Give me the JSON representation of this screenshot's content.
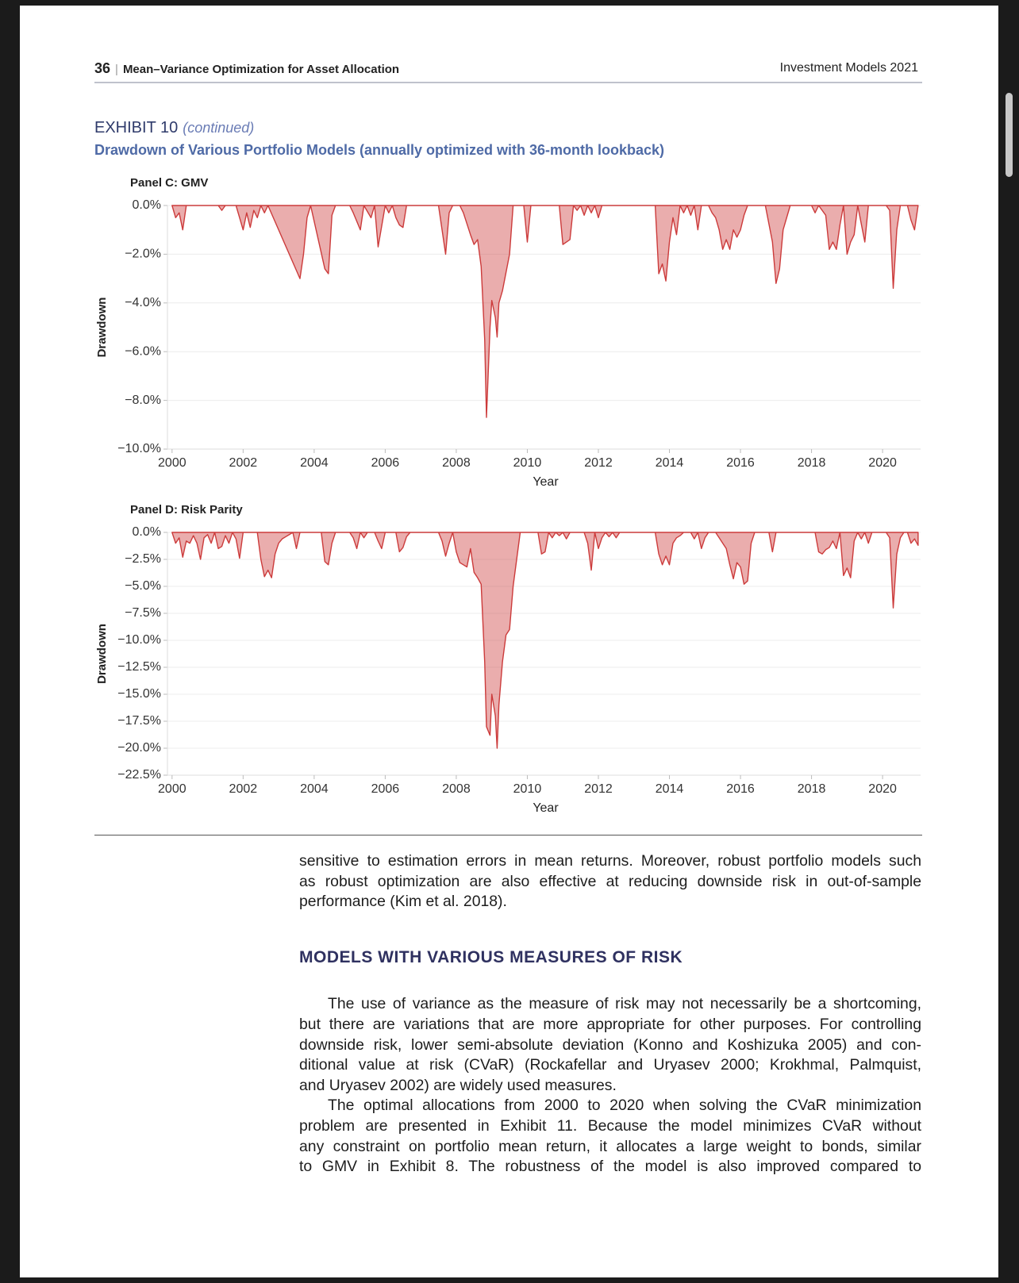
{
  "header": {
    "page_number": "36",
    "running_title": "Mean–Variance Optimization for Asset Allocation",
    "journal": "Investment Models 2021"
  },
  "exhibit": {
    "label": "EXHIBIT 10",
    "note": "(continued)",
    "title": "Drawdown of Various Portfolio Models (annually optimized with 36-month lookback)"
  },
  "chart_data": [
    {
      "type": "area",
      "title": "Panel C: GMV",
      "x_label": "Year",
      "y_label": "Drawdown",
      "color": "#cc3b3b",
      "grid": true,
      "xlim": [
        1999.87,
        2021.07
      ],
      "xticks": [
        2000,
        2002,
        2004,
        2006,
        2008,
        2010,
        2012,
        2014,
        2016,
        2018,
        2020
      ],
      "ylim": [
        -10,
        0
      ],
      "yticks": [
        {
          "value": 0,
          "label": "0.0%"
        },
        {
          "value": -2,
          "label": "−2.0%"
        },
        {
          "value": -4,
          "label": "−4.0%"
        },
        {
          "value": -6,
          "label": "−6.0%"
        },
        {
          "value": -8,
          "label": "−8.0%"
        },
        {
          "value": -10,
          "label": "−10.0%"
        }
      ],
      "x": [
        2000.0,
        2000.1,
        2000.2,
        2000.3,
        2000.4,
        2001.3,
        2001.4,
        2001.5,
        2001.8,
        2001.9,
        2002.0,
        2002.1,
        2002.2,
        2002.3,
        2002.4,
        2002.5,
        2002.6,
        2002.7,
        2003.6,
        2003.7,
        2003.8,
        2003.9,
        2004.3,
        2004.4,
        2004.5,
        2004.6,
        2005.0,
        2005.1,
        2005.3,
        2005.4,
        2005.6,
        2005.7,
        2005.8,
        2006.0,
        2006.1,
        2006.2,
        2006.3,
        2006.4,
        2006.5,
        2006.6,
        2007.5,
        2007.6,
        2007.7,
        2007.8,
        2007.9,
        2008.1,
        2008.2,
        2008.4,
        2008.5,
        2008.6,
        2008.7,
        2008.8,
        2008.85,
        2008.95,
        2009.0,
        2009.1,
        2009.15,
        2009.2,
        2009.3,
        2009.5,
        2009.6,
        2009.9,
        2010.0,
        2010.1,
        2010.9,
        2011.0,
        2011.1,
        2011.2,
        2011.3,
        2011.4,
        2011.5,
        2011.6,
        2011.7,
        2011.8,
        2011.9,
        2012.0,
        2012.1,
        2013.6,
        2013.7,
        2013.8,
        2013.9,
        2014.0,
        2014.1,
        2014.2,
        2014.3,
        2014.4,
        2014.5,
        2014.6,
        2014.7,
        2014.8,
        2014.9,
        2015.1,
        2015.2,
        2015.3,
        2015.4,
        2015.5,
        2015.6,
        2015.7,
        2015.8,
        2015.9,
        2016.0,
        2016.1,
        2016.2,
        2016.7,
        2016.9,
        2017.0,
        2017.1,
        2017.2,
        2017.4,
        2018.0,
        2018.1,
        2018.2,
        2018.4,
        2018.5,
        2018.6,
        2018.7,
        2018.8,
        2018.9,
        2019.0,
        2019.1,
        2019.2,
        2019.3,
        2019.5,
        2019.6,
        2020.1,
        2020.2,
        2020.3,
        2020.4,
        2020.5,
        2020.7,
        2020.8,
        2020.9,
        2021.0
      ],
      "values": [
        0,
        -0.5,
        -0.3,
        -1.0,
        0,
        0,
        -0.2,
        0,
        0,
        -0.5,
        -1.0,
        -0.3,
        -0.9,
        -0.2,
        -0.5,
        0,
        -0.3,
        0,
        -3.0,
        -2.0,
        -0.5,
        0,
        -2.6,
        -2.8,
        -0.4,
        0,
        0,
        -0.3,
        -1.0,
        0,
        -0.5,
        0,
        -1.7,
        0,
        -0.3,
        0,
        -0.5,
        -0.8,
        -0.9,
        0,
        0,
        -1.0,
        -2.0,
        -0.3,
        0,
        0,
        -0.3,
        -1.2,
        -1.6,
        -1.4,
        -2.5,
        -5.5,
        -8.7,
        -5.0,
        -3.9,
        -4.6,
        -5.4,
        -4.0,
        -3.5,
        -2.0,
        0,
        0,
        -1.5,
        0,
        0,
        -1.6,
        -1.5,
        -1.4,
        0,
        -0.2,
        0,
        -0.4,
        0,
        -0.3,
        0,
        -0.5,
        0,
        0,
        -2.8,
        -2.4,
        -3.1,
        -1.5,
        -0.5,
        -1.2,
        0,
        -0.3,
        0,
        -0.4,
        0,
        -1.0,
        0,
        0,
        -0.3,
        -0.5,
        -1.0,
        -1.8,
        -1.4,
        -1.8,
        -1.0,
        -1.3,
        -1.0,
        -0.4,
        0,
        0,
        -1.5,
        -3.2,
        -2.6,
        -1.0,
        0,
        0,
        -0.3,
        0,
        -0.4,
        -1.8,
        -1.5,
        -1.8,
        -0.8,
        0,
        -2.0,
        -1.5,
        -1.2,
        0,
        -1.5,
        0,
        0,
        -0.2,
        -3.4,
        -1.0,
        0,
        0,
        -0.6,
        -1.0,
        0
      ]
    },
    {
      "type": "area",
      "title": "Panel D: Risk Parity",
      "x_label": "Year",
      "y_label": "Drawdown",
      "color": "#cc3b3b",
      "grid": true,
      "xlim": [
        1999.87,
        2021.07
      ],
      "xticks": [
        2000,
        2002,
        2004,
        2006,
        2008,
        2010,
        2012,
        2014,
        2016,
        2018,
        2020
      ],
      "ylim": [
        -22.5,
        0
      ],
      "yticks": [
        {
          "value": 0,
          "label": "0.0%"
        },
        {
          "value": -2.5,
          "label": "−2.5%"
        },
        {
          "value": -5,
          "label": "−5.0%"
        },
        {
          "value": -7.5,
          "label": "−7.5%"
        },
        {
          "value": -10,
          "label": "−10.0%"
        },
        {
          "value": -12.5,
          "label": "−12.5%"
        },
        {
          "value": -15,
          "label": "−15.0%"
        },
        {
          "value": -17.5,
          "label": "−17.5%"
        },
        {
          "value": -20,
          "label": "−20.0%"
        },
        {
          "value": -22.5,
          "label": "−22.5%"
        }
      ],
      "x": [
        2000.0,
        2000.1,
        2000.2,
        2000.3,
        2000.4,
        2000.5,
        2000.6,
        2000.7,
        2000.8,
        2000.9,
        2001.0,
        2001.1,
        2001.2,
        2001.3,
        2001.4,
        2001.5,
        2001.6,
        2001.7,
        2001.8,
        2001.9,
        2002.0,
        2002.4,
        2002.5,
        2002.6,
        2002.7,
        2002.8,
        2002.9,
        2003.0,
        2003.1,
        2003.2,
        2003.3,
        2003.4,
        2003.5,
        2003.6,
        2004.2,
        2004.3,
        2004.4,
        2004.5,
        2004.6,
        2005.0,
        2005.1,
        2005.2,
        2005.3,
        2005.4,
        2005.5,
        2005.7,
        2005.8,
        2005.9,
        2006.0,
        2006.3,
        2006.4,
        2006.5,
        2006.6,
        2006.7,
        2007.5,
        2007.6,
        2007.7,
        2007.8,
        2007.9,
        2008.0,
        2008.1,
        2008.2,
        2008.3,
        2008.4,
        2008.5,
        2008.6,
        2008.7,
        2008.8,
        2008.85,
        2008.95,
        2009.0,
        2009.1,
        2009.15,
        2009.2,
        2009.3,
        2009.4,
        2009.5,
        2009.6,
        2009.8,
        2010.3,
        2010.4,
        2010.5,
        2010.6,
        2010.7,
        2010.8,
        2010.9,
        2011.0,
        2011.1,
        2011.2,
        2011.6,
        2011.7,
        2011.8,
        2011.9,
        2012.0,
        2012.1,
        2012.2,
        2012.3,
        2012.4,
        2012.5,
        2012.6,
        2013.6,
        2013.7,
        2013.8,
        2013.9,
        2014.0,
        2014.1,
        2014.2,
        2014.3,
        2014.4,
        2014.6,
        2014.7,
        2014.8,
        2014.9,
        2015.0,
        2015.1,
        2015.3,
        2015.4,
        2015.5,
        2015.6,
        2015.7,
        2015.8,
        2015.9,
        2016.0,
        2016.1,
        2016.2,
        2016.3,
        2016.4,
        2016.8,
        2016.9,
        2017.0,
        2018.1,
        2018.2,
        2018.3,
        2018.4,
        2018.5,
        2018.6,
        2018.7,
        2018.8,
        2018.9,
        2019.0,
        2019.1,
        2019.2,
        2019.3,
        2019.4,
        2019.5,
        2019.6,
        2019.7,
        2020.1,
        2020.2,
        2020.3,
        2020.4,
        2020.5,
        2020.6,
        2020.7,
        2020.8,
        2020.9,
        2021.0
      ],
      "values": [
        0,
        -1.0,
        -0.5,
        -2.3,
        -0.8,
        -1.0,
        -0.3,
        -1.0,
        -2.5,
        -0.5,
        -0.2,
        -1.0,
        0,
        -1.5,
        -1.3,
        -0.3,
        -1.0,
        0,
        -0.6,
        -2.4,
        0,
        0,
        -2.5,
        -4.1,
        -3.5,
        -4.2,
        -2.0,
        -1.0,
        -0.6,
        -0.4,
        -0.2,
        0,
        -1.5,
        0,
        0,
        -2.7,
        -3.0,
        -1.0,
        0,
        0,
        -0.5,
        -1.5,
        0,
        -0.5,
        0,
        0,
        -0.8,
        -1.5,
        0,
        0,
        -1.8,
        -1.4,
        -0.4,
        0,
        0,
        -0.8,
        -2.2,
        -1.0,
        0,
        -1.8,
        -2.8,
        -3.0,
        -3.2,
        -1.5,
        -3.7,
        -4.2,
        -4.8,
        -12.0,
        -18.0,
        -18.8,
        -15.0,
        -17.0,
        -20.0,
        -16.0,
        -12.0,
        -9.5,
        -9.0,
        -5.0,
        0,
        0,
        -2.0,
        -1.8,
        0,
        -0.5,
        0,
        -0.3,
        0,
        -0.6,
        0,
        0,
        -1.0,
        -3.5,
        0,
        -1.5,
        -0.5,
        0,
        -0.4,
        0,
        -0.5,
        0,
        0,
        -2.0,
        -3.0,
        -2.2,
        -3.0,
        -1.0,
        -0.5,
        -0.3,
        0,
        0,
        -0.6,
        0,
        -1.5,
        -0.5,
        0,
        0,
        -0.5,
        -1.0,
        -1.5,
        -3.0,
        -4.3,
        -2.8,
        -3.2,
        -4.8,
        -4.5,
        -1.0,
        0,
        0,
        -1.8,
        0,
        0,
        -1.8,
        -2.0,
        -1.6,
        -1.4,
        -0.8,
        -1.5,
        0,
        -4.0,
        -3.3,
        -4.2,
        -0.8,
        0,
        -0.6,
        0,
        -1.0,
        0,
        0,
        -0.5,
        -7.0,
        -2.0,
        -0.5,
        0,
        0,
        -1.0,
        -0.6,
        -1.2
      ]
    }
  ],
  "body": {
    "paragraphs": [
      [
        "sensitive to estimation errors in mean returns. Moreover, robust portfolio models such",
        "as robust optimization are also effective at reducing downside risk in out-of-sample",
        "performance (Kim et al. 2018)."
      ],
      [
        "The use of variance as the measure of risk may not necessarily be a shortcoming,",
        "but there are variations that are more appropriate for other purposes. For controlling",
        "downside risk, lower semi-absolute deviation (Konno and Koshizuka 2005) and con-",
        "ditional value at risk (CVaR) (Rockafellar and Uryasev 2000; Krokhmal, Palmquist,",
        "and Uryasev 2002) are widely used measures."
      ],
      [
        "The optimal allocations from 2000 to 2020 when solving the CVaR minimization",
        "problem are presented in Exhibit 11. Because the model minimizes CVaR without",
        "any constraint on portfolio mean return, it allocates a large weight to bonds, similar",
        "to GMV in Exhibit 8. The robustness of the model is also improved compared to"
      ]
    ],
    "heading": "MODELS WITH VARIOUS MEASURES OF RISK"
  }
}
